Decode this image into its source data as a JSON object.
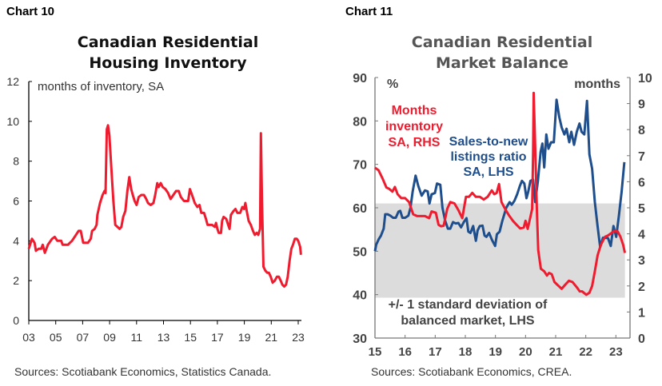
{
  "chart_data": [
    {
      "type": "line",
      "label": "Chart 10",
      "title": "Canadian Residential Housing Inventory",
      "title_lines": [
        "Canadian Residential",
        "Housing Inventory"
      ],
      "annotation": "months of inventory, SA",
      "source": "Sources: Scotiabank Economics, Statistics Canada.",
      "xticks": [
        "03",
        "05",
        "07",
        "09",
        "11",
        "13",
        "15",
        "17",
        "19",
        "21",
        "23"
      ],
      "xlim": [
        2003,
        2023.3
      ],
      "yticks": [
        "0",
        "2",
        "4",
        "6",
        "8",
        "10",
        "12"
      ],
      "ylim": [
        0,
        12
      ],
      "grid": false,
      "color": "#ee1c2e",
      "series": [
        {
          "x": [
            2003.0,
            2003.24,
            2003.43,
            2003.53,
            2003.73,
            2003.92,
            2004.03,
            2004.19,
            2004.42,
            2004.73,
            2004.92,
            2005.12,
            2005.41,
            2005.51,
            2005.91,
            2006.05,
            2006.21,
            2006.5,
            2006.7,
            2006.86,
            2007.04,
            2007.39,
            2007.6,
            2007.7,
            2007.89,
            2008.03,
            2008.09,
            2008.29,
            2008.48,
            2008.62,
            2008.7,
            2008.79,
            2008.88,
            2008.98,
            2009.14,
            2009.28,
            2009.42,
            2009.58,
            2009.74,
            2009.87,
            2010.01,
            2010.17,
            2010.32,
            2010.46,
            2010.6,
            2010.72,
            2010.86,
            2011.0,
            2011.16,
            2011.35,
            2011.55,
            2011.72,
            2011.85,
            2012.05,
            2012.25,
            2012.38,
            2012.54,
            2012.64,
            2012.79,
            2012.94,
            2013.14,
            2013.34,
            2013.53,
            2013.73,
            2013.93,
            2014.13,
            2014.29,
            2014.52,
            2014.83,
            2014.96,
            2015.12,
            2015.32,
            2015.51,
            2015.67,
            2015.81,
            2016.01,
            2016.15,
            2016.27,
            2016.61,
            2016.81,
            2016.9,
            2017.0,
            2017.1,
            2017.27,
            2017.35,
            2017.46,
            2017.66,
            2017.8,
            2017.9,
            2018.0,
            2018.2,
            2018.34,
            2018.49,
            2018.69,
            2018.85,
            2018.98,
            2019.08,
            2019.18,
            2019.32,
            2019.48,
            2019.64,
            2019.78,
            2019.92,
            2020.03,
            2020.17,
            2020.23,
            2020.31,
            2020.42,
            2020.56,
            2020.7,
            2020.82,
            2020.96,
            2021.1,
            2021.26,
            2021.42,
            2021.56,
            2021.7,
            2021.82,
            2021.96,
            2022.1,
            2022.22,
            2022.36,
            2022.49,
            2022.61,
            2022.75,
            2022.89,
            2023.0,
            2023.14,
            2023.2
          ],
          "y": [
            3.6,
            4.1,
            3.9,
            3.5,
            3.6,
            3.6,
            3.8,
            3.4,
            3.8,
            4.1,
            4.2,
            4.0,
            4.0,
            3.8,
            3.8,
            3.9,
            4.0,
            4.3,
            4.5,
            4.5,
            3.9,
            3.9,
            4.1,
            4.5,
            4.6,
            4.8,
            5.3,
            5.9,
            6.3,
            6.5,
            6.4,
            9.6,
            9.8,
            9.3,
            7.5,
            6.0,
            4.8,
            4.7,
            4.6,
            4.7,
            5.2,
            5.5,
            6.5,
            7.2,
            6.6,
            6.3,
            6.0,
            5.8,
            6.2,
            6.3,
            6.3,
            6.1,
            5.9,
            5.8,
            5.9,
            6.3,
            6.9,
            6.7,
            6.9,
            6.7,
            6.6,
            6.4,
            6.1,
            6.3,
            6.5,
            6.5,
            6.2,
            6.0,
            6.0,
            6.6,
            6.3,
            5.9,
            5.7,
            5.8,
            5.4,
            5.4,
            5.1,
            4.8,
            4.8,
            4.7,
            4.9,
            4.6,
            4.4,
            4.4,
            5.0,
            5.2,
            5.1,
            4.8,
            4.6,
            5.3,
            5.5,
            5.6,
            5.4,
            5.4,
            5.7,
            5.6,
            5.9,
            5.5,
            5.0,
            4.8,
            4.5,
            4.3,
            4.4,
            4.3,
            4.6,
            9.4,
            6.0,
            2.7,
            2.5,
            2.4,
            2.4,
            2.2,
            1.9,
            2.0,
            2.2,
            2.2,
            2.0,
            1.8,
            1.7,
            1.8,
            2.2,
            3.0,
            3.6,
            3.8,
            4.1,
            4.1,
            4.0,
            3.7,
            3.3
          ]
        }
      ]
    },
    {
      "type": "line",
      "label": "Chart 11",
      "title": "Canadian Residential Market Balance",
      "title_lines": [
        "Canadian Residential",
        "Market Balance"
      ],
      "source": "Sources: Scotiabank Economics, CREA.",
      "xticks": [
        "15",
        "16",
        "17",
        "18",
        "19",
        "20",
        "21",
        "22",
        "23"
      ],
      "xlim": [
        2015,
        2023.48
      ],
      "ylabel_left": "%",
      "ylabel_right": "months",
      "yticks_left": [
        "30",
        "40",
        "50",
        "60",
        "70",
        "80",
        "90"
      ],
      "ylim_left": [
        30,
        90
      ],
      "yticks_right": [
        "0",
        "1",
        "2",
        "3",
        "4",
        "5",
        "6",
        "7",
        "8",
        "9",
        "10"
      ],
      "ylim_right": [
        0,
        10
      ],
      "grid": false,
      "band": {
        "from": 39.3,
        "to": 61.0,
        "axis": "left",
        "color": "#dcdcdc",
        "label_lines": [
          "+/- 1 standard deviation of",
          "balanced market, LHS"
        ]
      },
      "series": [
        {
          "name": "Sales-to-new listings ratio SA, LHS",
          "label_lines": [
            "Sales-to-new",
            "listings ratio",
            "SA, LHS"
          ],
          "axis": "left",
          "color": "#1f4e8c",
          "x": [
            2015.0,
            2015.04,
            2015.12,
            2015.2,
            2015.29,
            2015.34,
            2015.42,
            2015.51,
            2015.6,
            2015.69,
            2015.78,
            2015.84,
            2015.91,
            2016.0,
            2016.11,
            2016.18,
            2016.25,
            2016.35,
            2016.44,
            2016.55,
            2016.66,
            2016.75,
            2016.81,
            2016.88,
            2016.99,
            2017.06,
            2017.17,
            2017.24,
            2017.33,
            2017.42,
            2017.5,
            2017.59,
            2017.68,
            2017.77,
            2017.86,
            2017.95,
            2018.04,
            2018.1,
            2018.17,
            2018.26,
            2018.35,
            2018.41,
            2018.48,
            2018.57,
            2018.64,
            2018.7,
            2018.79,
            2018.88,
            2018.99,
            2019.05,
            2019.14,
            2019.23,
            2019.36,
            2019.47,
            2019.54,
            2019.63,
            2019.72,
            2019.81,
            2019.88,
            2019.96,
            2020.03,
            2020.09,
            2020.16,
            2020.25,
            2020.32,
            2020.41,
            2020.5,
            2020.56,
            2020.62,
            2020.69,
            2020.76,
            2020.85,
            2020.94,
            2021.03,
            2021.12,
            2021.2,
            2021.29,
            2021.36,
            2021.45,
            2021.52,
            2021.61,
            2021.7,
            2021.79,
            2021.86,
            2021.95,
            2022.04,
            2022.12,
            2022.21,
            2022.3,
            2022.39,
            2022.48,
            2022.57,
            2022.65,
            2022.74,
            2022.83,
            2022.92,
            2023.01,
            2023.1,
            2023.19,
            2023.28
          ],
          "y": [
            50,
            51.5,
            52.7,
            53.6,
            55.2,
            58.5,
            58.5,
            58.2,
            57.7,
            57.7,
            59.1,
            59.3,
            57.7,
            57.7,
            58.2,
            60,
            63.7,
            67.4,
            65,
            62.8,
            64,
            63.8,
            61,
            63.1,
            63.4,
            65.6,
            65.3,
            60,
            57,
            55.2,
            55.2,
            56.7,
            56.4,
            56.5,
            55.5,
            56.7,
            57.6,
            54.5,
            54.2,
            55.8,
            52.4,
            54.8,
            55.8,
            55.9,
            53.6,
            53.3,
            54.2,
            52.7,
            51.2,
            53.9,
            54.5,
            57,
            60,
            61.3,
            60.7,
            61.6,
            63.1,
            65,
            66.2,
            65.6,
            62.2,
            63.7,
            66.2,
            66.5,
            61.3,
            66.2,
            72.9,
            74.8,
            69.3,
            76.9,
            73.6,
            75.1,
            75.1,
            84.9,
            80.9,
            78.5,
            76.9,
            78.2,
            75.1,
            77.5,
            74.5,
            77.5,
            79.4,
            77.5,
            76.9,
            84.6,
            72.3,
            69,
            61.3,
            55.8,
            50.9,
            53.1,
            53.1,
            53,
            51.2,
            55.8,
            53.3,
            58.2,
            63.7,
            70.5
          ]
        },
        {
          "name": "Months inventory SA, RHS",
          "label_lines": [
            "Months",
            "inventory",
            "SA, RHS"
          ],
          "axis": "right",
          "color": "#ee1c2e",
          "x": [
            2015.0,
            2015.12,
            2015.25,
            2015.38,
            2015.47,
            2015.58,
            2015.66,
            2015.75,
            2015.87,
            2016.0,
            2016.13,
            2016.27,
            2016.4,
            2016.53,
            2016.66,
            2016.8,
            2016.88,
            2017.02,
            2017.11,
            2017.19,
            2017.28,
            2017.4,
            2017.5,
            2017.64,
            2017.77,
            2017.9,
            2018.02,
            2018.12,
            2018.23,
            2018.35,
            2018.48,
            2018.61,
            2018.74,
            2018.88,
            2018.96,
            2019.04,
            2019.12,
            2019.2,
            2019.32,
            2019.45,
            2019.58,
            2019.7,
            2019.82,
            2019.94,
            2020.0,
            2020.07,
            2020.16,
            2020.22,
            2020.25,
            2020.27,
            2020.32,
            2020.38,
            2020.42,
            2020.51,
            2020.62,
            2020.71,
            2020.78,
            2020.87,
            2020.96,
            2021.06,
            2021.2,
            2021.31,
            2021.44,
            2021.56,
            2021.71,
            2021.8,
            2021.88,
            2022.02,
            2022.12,
            2022.21,
            2022.3,
            2022.39,
            2022.5,
            2022.64,
            2022.74,
            2022.86,
            2022.95,
            2023.06,
            2023.15,
            2023.24,
            2023.3
          ],
          "y": [
            6.54,
            6.44,
            6.13,
            5.78,
            5.73,
            5.62,
            5.8,
            5.52,
            5.37,
            5.37,
            5.22,
            4.75,
            4.68,
            4.68,
            4.68,
            4.6,
            4.86,
            4.81,
            4.35,
            4.29,
            4.31,
            4.96,
            5.22,
            5.17,
            4.91,
            4.6,
            5.42,
            5.42,
            5.57,
            5.42,
            5.42,
            5.32,
            5.42,
            5.67,
            5.52,
            5.57,
            5.91,
            5.22,
            4.96,
            4.71,
            4.5,
            4.35,
            4.21,
            4.24,
            4.5,
            4.19,
            4.65,
            4.96,
            7.16,
            9.41,
            7.36,
            4.81,
            3.37,
            2.66,
            2.56,
            2.4,
            2.5,
            2.45,
            2.15,
            2.04,
            1.89,
            2.04,
            2.2,
            2.15,
            1.94,
            1.79,
            1.79,
            1.66,
            1.74,
            2.0,
            2.56,
            3.17,
            3.58,
            3.89,
            3.94,
            4.04,
            4.11,
            4.09,
            3.89,
            3.58,
            3.27
          ]
        }
      ]
    }
  ]
}
